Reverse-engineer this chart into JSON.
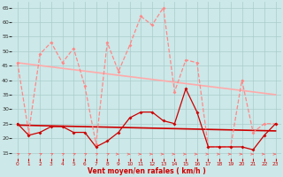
{
  "x": [
    0,
    1,
    2,
    3,
    4,
    5,
    6,
    7,
    8,
    9,
    10,
    11,
    12,
    13,
    14,
    15,
    16,
    17,
    18,
    19,
    20,
    21,
    22,
    23
  ],
  "rafales": [
    46,
    22,
    49,
    53,
    46,
    51,
    38,
    18,
    53,
    43,
    52,
    62,
    59,
    65,
    36,
    47,
    46,
    17,
    17,
    17,
    40,
    22,
    25,
    25
  ],
  "vent_moyen": [
    25,
    21,
    22,
    24,
    24,
    22,
    22,
    17,
    19,
    22,
    27,
    29,
    29,
    26,
    25,
    37,
    29,
    17,
    17,
    17,
    17,
    16,
    21,
    25
  ],
  "reg_rafales_y0": 46.0,
  "reg_rafales_y1": 35.0,
  "reg_vent_y0": 24.5,
  "reg_vent_y1": 22.5,
  "ylim": [
    13,
    67
  ],
  "yticks": [
    15,
    20,
    25,
    30,
    35,
    40,
    45,
    50,
    55,
    60,
    65
  ],
  "xticks": [
    0,
    1,
    2,
    3,
    4,
    5,
    6,
    7,
    8,
    9,
    10,
    11,
    12,
    13,
    14,
    15,
    16,
    17,
    18,
    19,
    20,
    21,
    22,
    23
  ],
  "xlabel": "Vent moyen/en rafales ( km/h )",
  "bg_color": "#cce8e8",
  "grid_color": "#aacccc",
  "color_rafales": "#ff8888",
  "color_reg_rafales": "#ffaaaa",
  "color_vent": "#cc0000",
  "color_reg_vent": "#cc0000",
  "arrow_color": "#ff6666",
  "arrow_ne_indices": [
    0,
    1,
    2,
    3,
    4,
    5,
    6,
    7,
    8
  ],
  "arrow_e_indices": [
    9,
    10,
    11,
    12,
    13,
    14,
    15,
    16,
    17,
    18,
    19,
    20,
    21,
    22,
    23
  ]
}
